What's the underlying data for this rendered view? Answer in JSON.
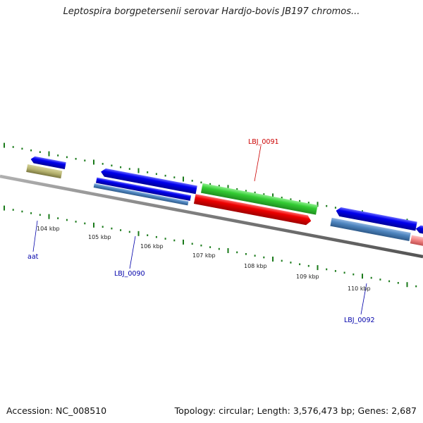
{
  "title": "Leptospira borgpetersenii serovar Hardjo-bovis JB197 chromos...",
  "footer": {
    "accession": "Accession: NC_008510",
    "summary": "Topology: circular; Length: 3,576,473 bp; Genes: 2,687"
  },
  "scale_ticks": [
    {
      "label": "104 kbp"
    },
    {
      "label": "105 kbp"
    },
    {
      "label": "106 kbp"
    },
    {
      "label": "107 kbp"
    },
    {
      "label": "108 kbp"
    },
    {
      "label": "109 kbp"
    },
    {
      "label": "110 kbp"
    }
  ],
  "gene_labels": [
    {
      "name": "aat",
      "color": "#0000aa"
    },
    {
      "name": "LBJ_0090",
      "color": "#0000aa"
    },
    {
      "name": "LBJ_0091",
      "color": "#cc0000"
    },
    {
      "name": "LBJ_0092",
      "color": "#0000aa"
    }
  ],
  "colors": {
    "backbone": "#808080",
    "tick_green": "#1a7a1a",
    "gene_blue": "#0000e6",
    "gene_steel": "#4f86c0",
    "gene_olive": "#b5b26e",
    "gene_green": "#33cc33",
    "gene_red": "#ee0000",
    "gene_pink": "#f08080"
  }
}
